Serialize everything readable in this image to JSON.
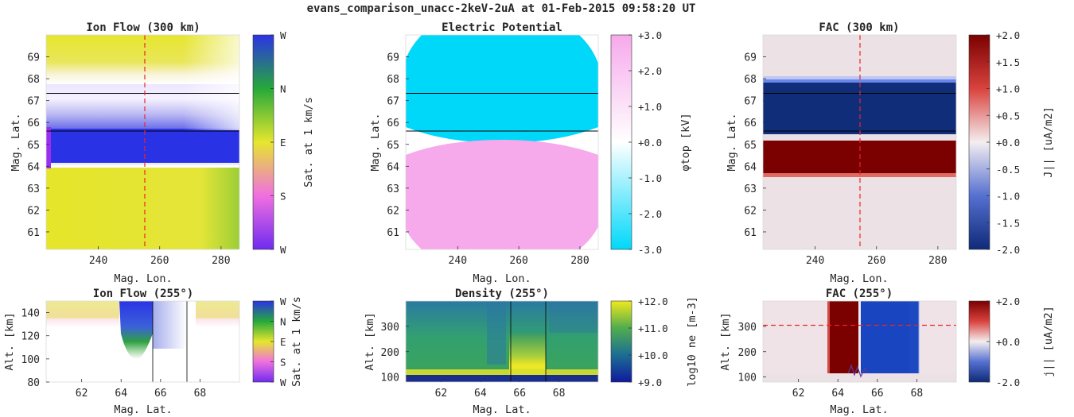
{
  "figure": {
    "suptitle": "evans_comparison_unacc-2keV-2uA at 01-Feb-2015 09:58:20 UT"
  },
  "colors": {
    "flow_yellow": "#e6e62e",
    "flow_blue": "#2b33e6",
    "flow_green": "#2fa043",
    "pot_cyan": "#00d8fa",
    "pot_pink": "#f6a9eb",
    "fac_red": "#7b0000",
    "fac_blue": "#102d7a",
    "fac_bg": "#ece1e5",
    "dens_dark": "#1a2f8c",
    "dens_mid": "#2a8a82",
    "dens_yellow": "#e6e627",
    "marker_line": "#e8262a",
    "boundary_line": "#000000"
  },
  "chart_data": [
    {
      "id": "ion_flow_300",
      "type": "heatmap",
      "title": "Ion Flow (300 km)",
      "xlabel": "Mag. Lon.",
      "ylabel": "Mag. Lat.",
      "xlim": [
        223,
        286
      ],
      "ylim": [
        60.2,
        70.0
      ],
      "xticks": [
        240,
        260,
        280
      ],
      "yticks": [
        61,
        62,
        63,
        64,
        65,
        66,
        67,
        68,
        69
      ],
      "boundaries_lat": [
        67.35,
        65.6
      ],
      "marker_lon": 255,
      "bands": [
        {
          "from": 68.0,
          "to": 70.0,
          "value": "E"
        },
        {
          "from": 65.6,
          "to": 67.6,
          "value": "N-E white mix"
        },
        {
          "from": 64.1,
          "to": 65.6,
          "value": "W"
        },
        {
          "from": 60.2,
          "to": 64.1,
          "value": "E"
        }
      ],
      "colorbar": {
        "label": "Sat. at 1 km/s",
        "ticks": [
          "W",
          "N",
          "E",
          "S",
          "W"
        ]
      }
    },
    {
      "id": "electric_potential",
      "type": "heatmap",
      "title": "Electric Potential",
      "xlabel": "Mag. Lon.",
      "ylabel": "Mag. Lat.",
      "xlim": [
        223,
        286
      ],
      "ylim": [
        60.2,
        70.0
      ],
      "xticks": [
        240,
        260,
        280
      ],
      "yticks": [
        61,
        62,
        63,
        64,
        65,
        66,
        67,
        68,
        69
      ],
      "boundaries_lat": [
        67.35,
        65.6
      ],
      "bands": [
        {
          "from": 65.3,
          "to": 70.0,
          "value": -3.0
        },
        {
          "from": 60.2,
          "to": 65.3,
          "value": 3.0
        }
      ],
      "colorbar": {
        "label": "φtop [kV]",
        "range": [
          -3.0,
          3.0
        ],
        "ticks": [
          "+3.0",
          "+2.0",
          "+1.0",
          "+0.0",
          "-1.0",
          "-2.0",
          "-3.0"
        ]
      }
    },
    {
      "id": "fac_300",
      "type": "heatmap",
      "title": "FAC (300 km)",
      "xlabel": "Mag. Lon.",
      "ylabel": "Mag. Lat.",
      "xlim": [
        223,
        286
      ],
      "ylim": [
        60.2,
        70.0
      ],
      "xticks": [
        240,
        260,
        280
      ],
      "yticks": [
        61,
        62,
        63,
        64,
        65,
        66,
        67,
        68,
        69
      ],
      "boundaries_lat": [
        67.35,
        65.6
      ],
      "marker_lon": 255,
      "bands": [
        {
          "from": 65.6,
          "to": 68.1,
          "value": -2.0
        },
        {
          "from": 63.8,
          "to": 65.1,
          "value": 2.0
        }
      ],
      "colorbar": {
        "label": "J|| [uA/m2]",
        "range": [
          -2.0,
          2.0
        ],
        "ticks": [
          "+2.0",
          "+1.5",
          "+1.0",
          "+0.5",
          "+0.0",
          "-0.5",
          "-1.0",
          "-1.5",
          "-2.0"
        ]
      }
    },
    {
      "id": "ion_flow_255",
      "type": "heatmap",
      "title": "Ion Flow (255°)",
      "xlabel": "Mag. Lat.",
      "ylabel": "Alt. [km]",
      "xlim": [
        60.2,
        70.0
      ],
      "ylim": [
        80,
        150
      ],
      "xticks": [
        62,
        64,
        66,
        68
      ],
      "yticks": [
        80,
        100,
        120,
        140
      ],
      "boundaries_lat": [
        65.6,
        67.35
      ],
      "colorbar": {
        "label": "Sat. at 1 km/s",
        "ticks": [
          "W",
          "N",
          "E",
          "S",
          "W"
        ]
      }
    },
    {
      "id": "density_255",
      "type": "heatmap",
      "title": "Density (255°)",
      "xlabel": "Mag. Lat.",
      "ylabel": "Alt. [km]",
      "xlim": [
        60.2,
        70.0
      ],
      "ylim": [
        80,
        400
      ],
      "xticks": [
        62,
        64,
        66,
        68
      ],
      "yticks": [
        100,
        200,
        300
      ],
      "boundaries_lat": [
        65.6,
        67.35
      ],
      "colorbar": {
        "label": "log10 ne [m-3]",
        "range": [
          9.0,
          12.0
        ],
        "ticks": [
          "+12.0",
          "+11.0",
          "+10.0",
          "+9.0"
        ]
      }
    },
    {
      "id": "fac_255",
      "type": "heatmap",
      "title": "FAC (255°)",
      "xlabel": "Mag. Lat.",
      "ylabel": "Alt. [km]",
      "xlim": [
        60.2,
        70.0
      ],
      "ylim": [
        80,
        400
      ],
      "xticks": [
        62,
        64,
        66,
        68
      ],
      "yticks": [
        100,
        200,
        300
      ],
      "marker_alt": 300,
      "colorbar": {
        "label": "j|| [uA/m2]",
        "range": [
          -2.0,
          2.0
        ],
        "ticks": [
          "+2.0",
          "+0.0",
          "-2.0"
        ]
      }
    }
  ]
}
